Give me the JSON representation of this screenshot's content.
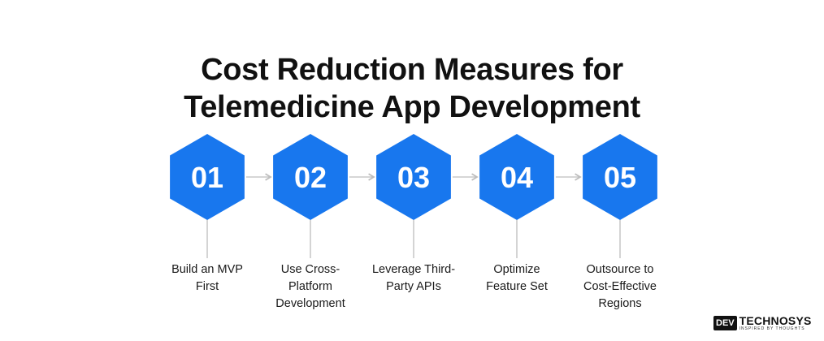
{
  "title": {
    "line1": "Cost Reduction Measures for",
    "line2": "Telemedicine App Development"
  },
  "colors": {
    "hexagon": "#1877ee",
    "connector": "#bdbdbd",
    "title": "#111111"
  },
  "steps": [
    {
      "number": "01",
      "label": [
        "Build an MVP",
        "First"
      ]
    },
    {
      "number": "02",
      "label": [
        "Use Cross-",
        "Platform",
        "Development"
      ]
    },
    {
      "number": "03",
      "label": [
        "Leverage Third-",
        "Party APIs"
      ]
    },
    {
      "number": "04",
      "label": [
        "Optimize",
        "Feature Set"
      ]
    },
    {
      "number": "05",
      "label": [
        "Outsource to",
        "Cost-Effective",
        "Regions"
      ]
    }
  ],
  "logo": {
    "dev": "DEV",
    "name": "TECHNOSYS",
    "tagline": "INSPIRED BY THOUGHTS"
  }
}
